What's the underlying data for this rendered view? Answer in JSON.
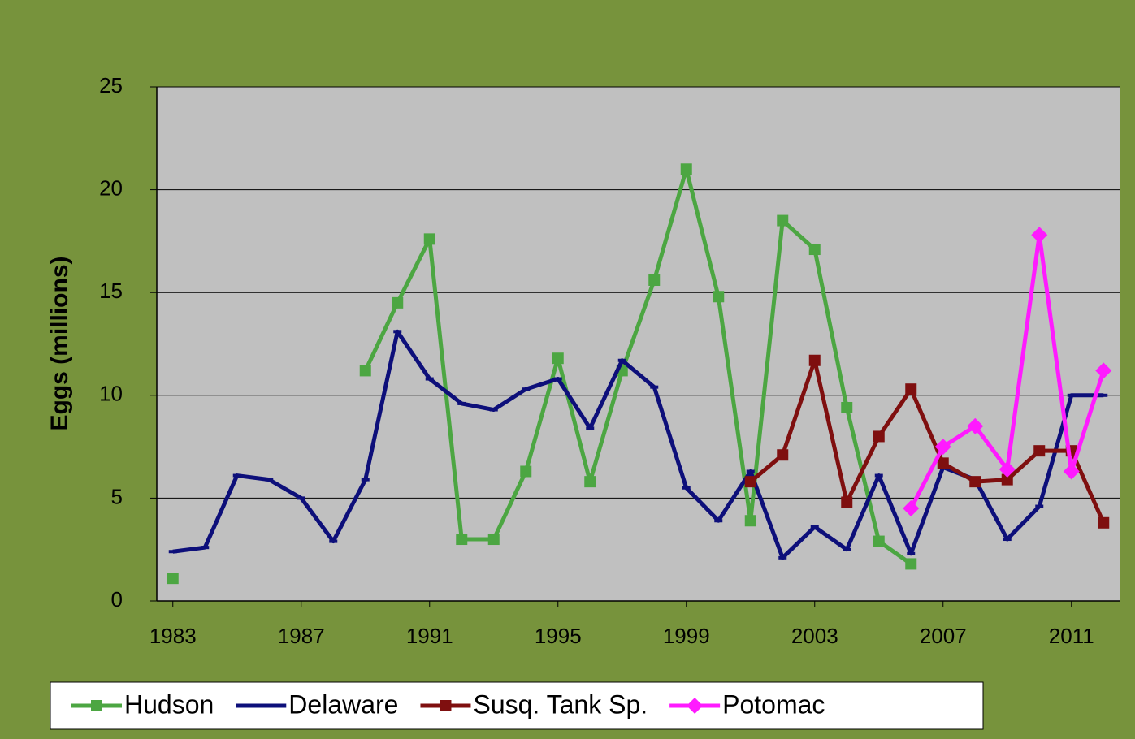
{
  "chart_data": {
    "type": "line",
    "y_label": "Eggs (millions)",
    "x": [
      1983,
      1984,
      1985,
      1986,
      1987,
      1988,
      1989,
      1990,
      1991,
      1992,
      1993,
      1994,
      1995,
      1996,
      1997,
      1998,
      1999,
      2000,
      2001,
      2002,
      2003,
      2004,
      2005,
      2006,
      2007,
      2008,
      2009,
      2010,
      2011,
      2012
    ],
    "series": [
      {
        "name": "Hudson",
        "color": "#4ca642",
        "marker": "square",
        "values": [
          1.1,
          null,
          null,
          null,
          null,
          null,
          11.2,
          14.5,
          17.6,
          3.0,
          3.0,
          6.3,
          11.8,
          5.8,
          11.2,
          15.6,
          21.0,
          14.8,
          3.9,
          18.5,
          17.1,
          9.4,
          2.9,
          1.8,
          null,
          null,
          null,
          null,
          null,
          null
        ]
      },
      {
        "name": "Delaware",
        "color": "#0d0f7a",
        "marker": "dash",
        "values": [
          2.4,
          2.6,
          6.1,
          5.9,
          5.0,
          2.9,
          5.9,
          13.1,
          10.8,
          9.6,
          9.3,
          10.3,
          10.8,
          8.4,
          11.7,
          10.4,
          5.5,
          3.9,
          6.3,
          2.1,
          3.6,
          2.5,
          6.1,
          2.3,
          6.5,
          5.9,
          3.0,
          4.6,
          10.0,
          10.0
        ]
      },
      {
        "name": "Susq. Tank Sp.",
        "color": "#7f0f0f",
        "marker": "square",
        "values": [
          null,
          null,
          null,
          null,
          null,
          null,
          null,
          null,
          null,
          null,
          null,
          null,
          null,
          null,
          null,
          null,
          null,
          null,
          5.8,
          7.1,
          11.7,
          4.8,
          8.0,
          10.3,
          6.7,
          5.8,
          5.9,
          7.3,
          7.3,
          3.8
        ]
      },
      {
        "name": "Potomac",
        "color": "#ff1aff",
        "marker": "diamond",
        "values": [
          null,
          null,
          null,
          null,
          null,
          null,
          null,
          null,
          null,
          null,
          null,
          null,
          null,
          null,
          null,
          null,
          null,
          null,
          null,
          null,
          null,
          null,
          null,
          4.5,
          7.5,
          8.5,
          6.4,
          17.8,
          6.3,
          11.2
        ]
      }
    ],
    "xlim": [
      1982.5,
      2012.5
    ],
    "xticks": [
      1983,
      1987,
      1991,
      1995,
      1999,
      2003,
      2007,
      2011
    ],
    "ylim": [
      0,
      25
    ],
    "yticks": [
      0,
      5,
      10,
      15,
      20,
      25
    ],
    "grid": true,
    "legend": "bottom"
  }
}
